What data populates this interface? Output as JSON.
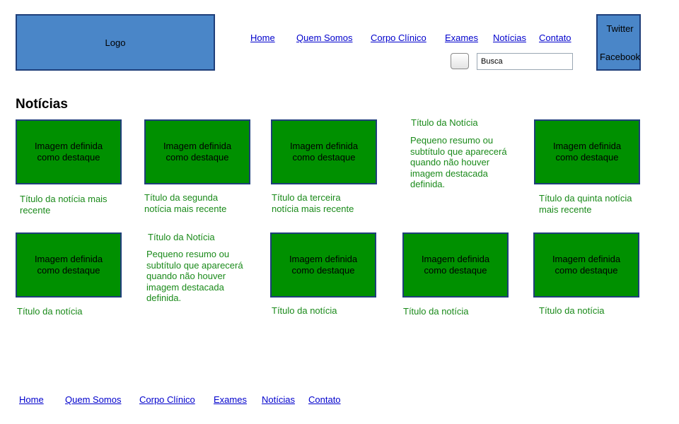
{
  "header": {
    "logo_label": "Logo",
    "social": {
      "twitter": "Twitter",
      "facebook": "Facebook"
    },
    "nav": [
      "Home",
      "Quem Somos",
      "Corpo Clínico",
      "Exames",
      "Notícias",
      "Contato"
    ],
    "search": {
      "value": "Busca"
    }
  },
  "main": {
    "heading": "Notícias",
    "image_placeholder": "Imagem definida como destaque",
    "row1": {
      "captions": [
        "Título da notícia mais recente",
        "Título da segunda notícia mais recente",
        "Título da terceira notícia mais recente",
        "Título da quinta notícia  mais recente"
      ],
      "text_item": {
        "title": "Título da Notícia",
        "summary": "Pequeno resumo ou subtítulo que aparecerá quando não houver imagem destacada definida."
      }
    },
    "row2": {
      "captions": [
        "Título da notícia",
        "Título da notícia",
        "Título da notícia",
        "Título da notícia"
      ],
      "text_item": {
        "title": "Título da Notícia",
        "summary": "Pequeno resumo ou subtítulo que aparecerá quando não houver imagem destacada definida."
      }
    }
  },
  "footer": {
    "nav": [
      "Home",
      "Quem Somos",
      "Corpo Clínico",
      "Exames",
      "Notícias",
      "Contato"
    ]
  },
  "colors": {
    "logo_bg": "#4a86c8",
    "image_bg": "#009000",
    "caption_text": "#1a8a1a",
    "link": "#0000cc"
  }
}
